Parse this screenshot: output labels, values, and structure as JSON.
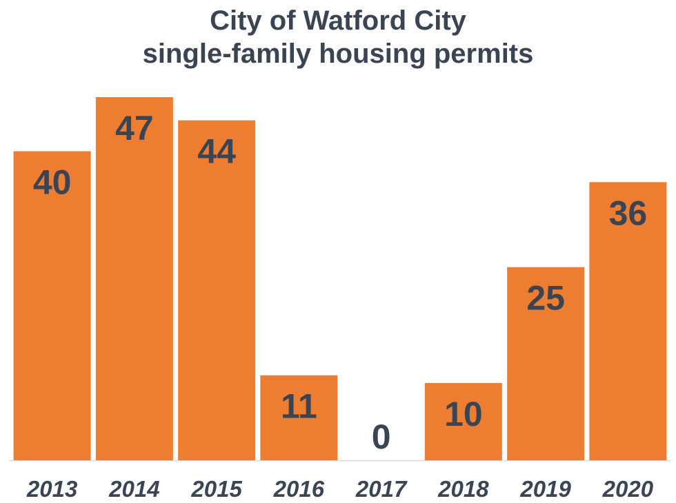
{
  "chart_data": {
    "type": "bar",
    "title": "City of Watford City",
    "subtitle": "single-family housing permits",
    "categories": [
      "2013",
      "2014",
      "2015",
      "2016",
      "2017",
      "2018",
      "2019",
      "2020"
    ],
    "values": [
      40,
      47,
      44,
      11,
      0,
      10,
      25,
      36
    ],
    "xlabel": "",
    "ylabel": "",
    "ylim": [
      0,
      47
    ],
    "grid": false,
    "legend": "none",
    "bar_color": "#ed7d31",
    "label_color": "#3a4453",
    "axis_color": "#d9d9d9"
  }
}
